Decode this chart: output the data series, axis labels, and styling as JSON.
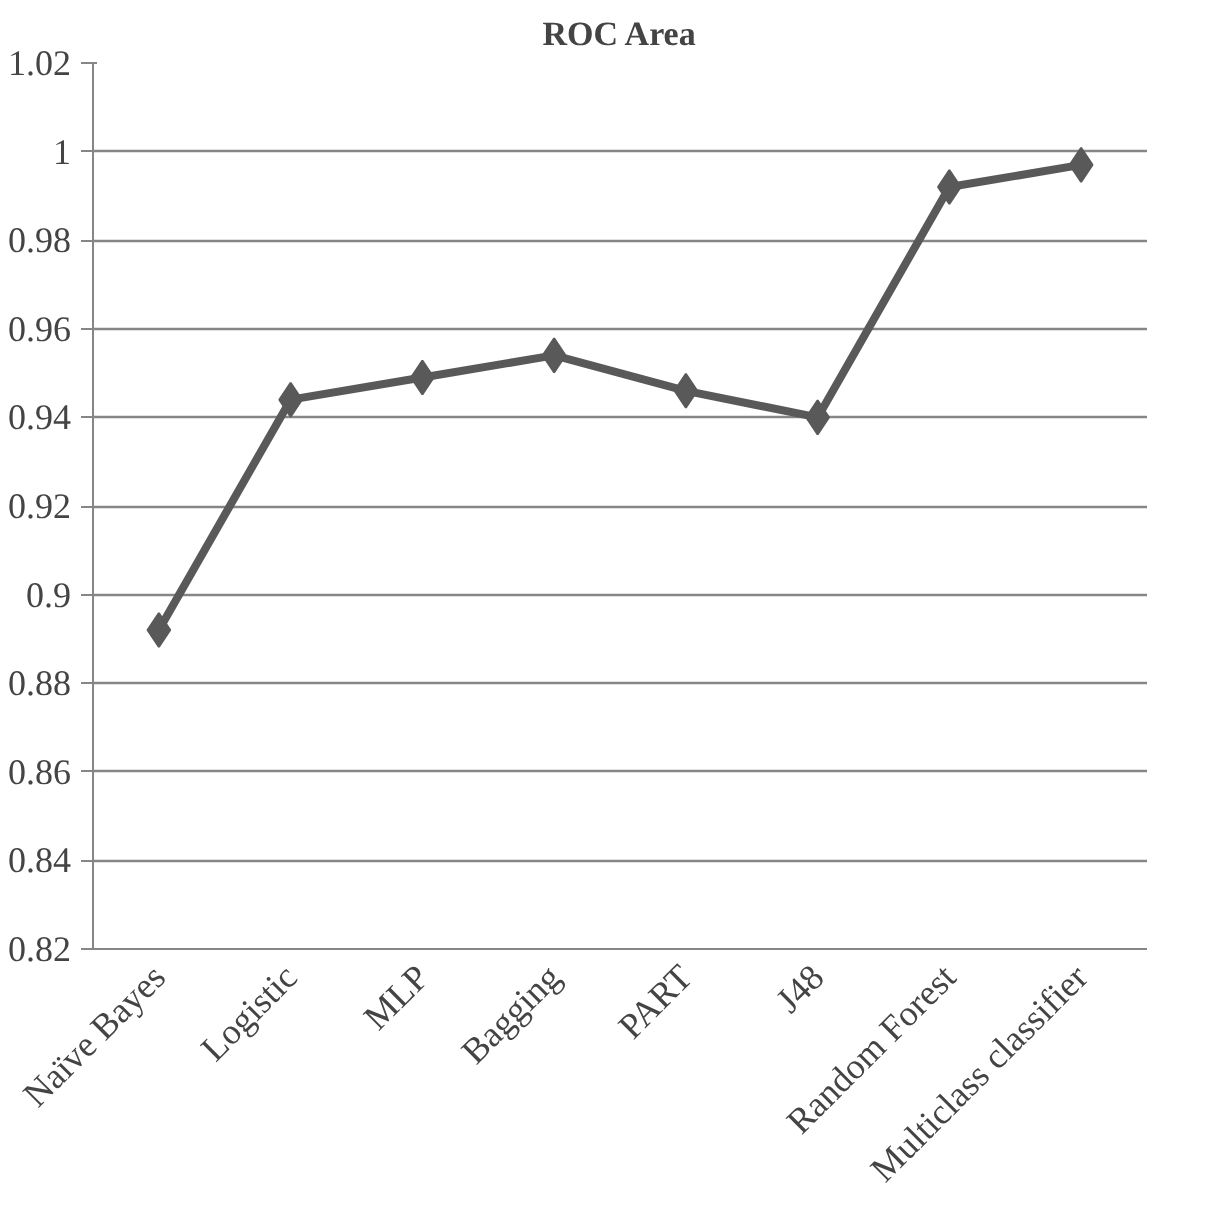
{
  "chart_data": {
    "type": "line",
    "title": "ROC Area",
    "categories": [
      "Naïve Bayes",
      "Logistic",
      "MLP",
      "Bagging",
      "PART",
      "J48",
      "Random Forest",
      "Multiclass classifier"
    ],
    "series": [
      {
        "color": "#595959",
        "values": [
          0.892,
          0.944,
          0.949,
          0.954,
          0.946,
          0.94,
          0.992,
          0.997
        ]
      }
    ],
    "ylim": [
      0.82,
      1.02
    ],
    "yticks": [
      0.82,
      0.84,
      0.86,
      0.88,
      0.9,
      0.92,
      0.94,
      0.96,
      0.98,
      1,
      1.02
    ],
    "grid": "y",
    "marker": "diamond",
    "line_style": "solid"
  }
}
